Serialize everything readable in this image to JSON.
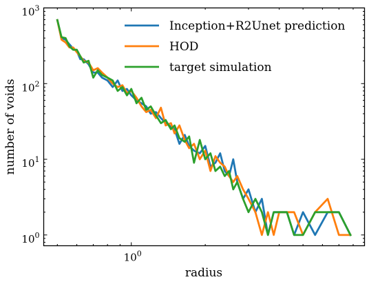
{
  "chart_data": {
    "type": "line",
    "xlabel": "radius",
    "ylabel": "number of voids",
    "xscale": "log",
    "yscale": "log",
    "xlim": [
      0.44,
      8.9
    ],
    "ylim": [
      0.72,
      1000
    ],
    "x_major_ticks": [
      {
        "value": 1,
        "base": "10",
        "exp": "0"
      }
    ],
    "y_major_ticks": [
      {
        "value": 1,
        "base": "10",
        "exp": "0"
      },
      {
        "value": 10,
        "base": "10",
        "exp": "1"
      },
      {
        "value": 100,
        "base": "10",
        "exp": "2"
      },
      {
        "value": 1000,
        "base": "10",
        "exp": "3"
      }
    ],
    "grid": false,
    "legend_position": "top-right",
    "series": [
      {
        "name": "Inception+R2Unet prediction",
        "color": "#1f77b4",
        "points": [
          [
            0.5,
            690
          ],
          [
            0.52,
            400
          ],
          [
            0.54,
            380
          ],
          [
            0.56,
            330
          ],
          [
            0.58,
            290
          ],
          [
            0.6,
            270
          ],
          [
            0.62,
            210
          ],
          [
            0.64,
            210
          ],
          [
            0.67,
            180
          ],
          [
            0.7,
            140
          ],
          [
            0.73,
            140
          ],
          [
            0.76,
            120
          ],
          [
            0.8,
            110
          ],
          [
            0.84,
            90
          ],
          [
            0.88,
            110
          ],
          [
            0.92,
            80
          ],
          [
            0.96,
            85
          ],
          [
            1.0,
            70
          ],
          [
            1.05,
            60
          ],
          [
            1.1,
            55
          ],
          [
            1.15,
            50
          ],
          [
            1.2,
            40
          ],
          [
            1.26,
            42
          ],
          [
            1.32,
            35
          ],
          [
            1.38,
            30
          ],
          [
            1.45,
            27
          ],
          [
            1.5,
            25
          ],
          [
            1.57,
            16
          ],
          [
            1.65,
            21
          ],
          [
            1.72,
            15
          ],
          [
            1.8,
            13
          ],
          [
            1.9,
            12
          ],
          [
            2.0,
            15
          ],
          [
            2.1,
            8
          ],
          [
            2.2,
            9
          ],
          [
            2.3,
            12
          ],
          [
            2.4,
            7
          ],
          [
            2.5,
            6
          ],
          [
            2.6,
            10
          ],
          [
            2.7,
            5
          ],
          [
            2.85,
            3
          ],
          [
            3.0,
            4
          ],
          [
            3.2,
            2
          ],
          [
            3.4,
            3
          ],
          [
            3.6,
            1
          ],
          [
            3.8,
            2
          ],
          [
            4.0,
            2
          ],
          [
            4.3,
            2
          ],
          [
            4.6,
            1
          ],
          [
            5.0,
            2
          ],
          [
            5.6,
            1
          ],
          [
            6.3,
            2
          ],
          [
            7.0,
            2
          ],
          [
            7.8,
            1
          ]
        ]
      },
      {
        "name": "HOD",
        "color": "#ff7f0e",
        "points": [
          [
            0.5,
            690
          ],
          [
            0.52,
            380
          ],
          [
            0.54,
            350
          ],
          [
            0.56,
            300
          ],
          [
            0.58,
            300
          ],
          [
            0.6,
            260
          ],
          [
            0.62,
            230
          ],
          [
            0.64,
            200
          ],
          [
            0.67,
            190
          ],
          [
            0.7,
            150
          ],
          [
            0.73,
            160
          ],
          [
            0.76,
            140
          ],
          [
            0.8,
            120
          ],
          [
            0.84,
            100
          ],
          [
            0.88,
            90
          ],
          [
            0.92,
            95
          ],
          [
            0.96,
            75
          ],
          [
            1.0,
            80
          ],
          [
            1.05,
            65
          ],
          [
            1.1,
            50
          ],
          [
            1.15,
            42
          ],
          [
            1.2,
            45
          ],
          [
            1.26,
            35
          ],
          [
            1.32,
            48
          ],
          [
            1.38,
            28
          ],
          [
            1.45,
            30
          ],
          [
            1.5,
            22
          ],
          [
            1.57,
            28
          ],
          [
            1.65,
            18
          ],
          [
            1.72,
            14
          ],
          [
            1.8,
            16
          ],
          [
            1.9,
            10
          ],
          [
            2.0,
            13
          ],
          [
            2.1,
            7
          ],
          [
            2.2,
            11
          ],
          [
            2.3,
            9
          ],
          [
            2.4,
            8
          ],
          [
            2.5,
            6
          ],
          [
            2.6,
            5
          ],
          [
            2.7,
            6
          ],
          [
            2.85,
            4
          ],
          [
            3.0,
            3
          ],
          [
            3.2,
            2
          ],
          [
            3.4,
            1
          ],
          [
            3.6,
            2
          ],
          [
            3.8,
            1
          ],
          [
            4.0,
            2
          ],
          [
            4.3,
            2
          ],
          [
            4.6,
            2
          ],
          [
            5.0,
            1
          ],
          [
            5.6,
            2
          ],
          [
            6.3,
            3
          ],
          [
            7.0,
            1
          ],
          [
            7.8,
            1
          ]
        ]
      },
      {
        "name": "target simulation",
        "color": "#2ca02c",
        "points": [
          [
            0.5,
            690
          ],
          [
            0.52,
            410
          ],
          [
            0.54,
            400
          ],
          [
            0.56,
            310
          ],
          [
            0.58,
            280
          ],
          [
            0.6,
            280
          ],
          [
            0.62,
            230
          ],
          [
            0.64,
            190
          ],
          [
            0.67,
            200
          ],
          [
            0.7,
            120
          ],
          [
            0.73,
            150
          ],
          [
            0.76,
            130
          ],
          [
            0.8,
            120
          ],
          [
            0.84,
            110
          ],
          [
            0.88,
            80
          ],
          [
            0.92,
            90
          ],
          [
            0.96,
            70
          ],
          [
            1.0,
            85
          ],
          [
            1.05,
            55
          ],
          [
            1.1,
            65
          ],
          [
            1.15,
            45
          ],
          [
            1.2,
            50
          ],
          [
            1.26,
            38
          ],
          [
            1.32,
            30
          ],
          [
            1.38,
            33
          ],
          [
            1.45,
            25
          ],
          [
            1.5,
            28
          ],
          [
            1.57,
            19
          ],
          [
            1.65,
            17
          ],
          [
            1.72,
            20
          ],
          [
            1.8,
            9
          ],
          [
            1.9,
            18
          ],
          [
            2.0,
            10
          ],
          [
            2.1,
            12
          ],
          [
            2.2,
            7
          ],
          [
            2.3,
            8
          ],
          [
            2.4,
            6
          ],
          [
            2.5,
            7
          ],
          [
            2.6,
            4
          ],
          [
            2.7,
            5
          ],
          [
            2.85,
            3
          ],
          [
            3.0,
            2
          ],
          [
            3.2,
            3
          ],
          [
            3.4,
            2
          ],
          [
            3.6,
            1
          ],
          [
            3.8,
            2
          ],
          [
            4.0,
            2
          ],
          [
            4.3,
            2
          ],
          [
            4.6,
            1
          ],
          [
            5.0,
            1
          ],
          [
            5.6,
            2
          ],
          [
            6.3,
            2
          ],
          [
            7.0,
            2
          ],
          [
            7.8,
            1
          ]
        ]
      }
    ]
  }
}
